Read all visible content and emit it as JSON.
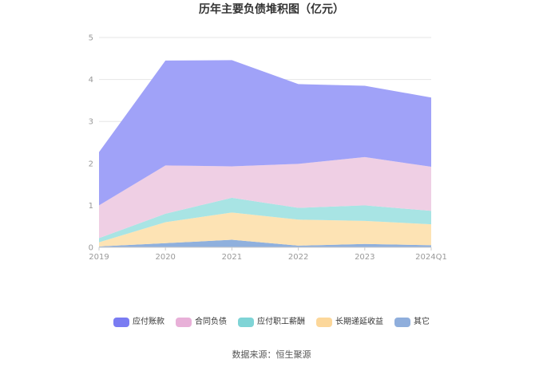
{
  "chart_data": {
    "type": "area",
    "stacked": true,
    "title": "历年主要负债堆积图（亿元）",
    "categories": [
      "2019",
      "2020",
      "2021",
      "2022",
      "2023",
      "2024Q1"
    ],
    "ylim": [
      0,
      5
    ],
    "yticks": [
      "0",
      "1",
      "2",
      "3",
      "4",
      "5"
    ],
    "grid": true,
    "legend_position": "bottom",
    "series": [
      {
        "name": "其它",
        "color": "#8fb0dd",
        "values": [
          0.02,
          0.1,
          0.18,
          0.04,
          0.08,
          0.05
        ]
      },
      {
        "name": "长期递延收益",
        "color": "#fde3b4",
        "values": [
          0.1,
          0.5,
          0.65,
          0.62,
          0.55,
          0.5
        ]
      },
      {
        "name": "应付职工薪酬",
        "color": "#a8e4e4",
        "values": [
          0.1,
          0.2,
          0.35,
          0.28,
          0.37,
          0.32
        ]
      },
      {
        "name": "合同负债",
        "color": "#efcfe4",
        "values": [
          0.78,
          1.15,
          0.75,
          1.05,
          1.15,
          1.05
        ]
      },
      {
        "name": "应付账款",
        "color": "#a0a2f8",
        "values": [
          1.27,
          2.5,
          2.53,
          1.9,
          1.7,
          1.65
        ]
      }
    ],
    "legend_colors": {
      "应付账款": "#7a7cf2",
      "合同负债": "#e8b0d8",
      "应付职工薪酬": "#7fd4d6",
      "长期递延收益": "#fcd79a",
      "其它": "#8faedc"
    }
  },
  "legend": [
    {
      "label": "应付账款",
      "color": "#7a7cf2"
    },
    {
      "label": "合同负债",
      "color": "#e8b0d8"
    },
    {
      "label": "应付职工薪酬",
      "color": "#7fd4d6"
    },
    {
      "label": "长期递延收益",
      "color": "#fcd79a"
    },
    {
      "label": "其它",
      "color": "#8faedc"
    }
  ],
  "source": "数据来源：恒生聚源"
}
